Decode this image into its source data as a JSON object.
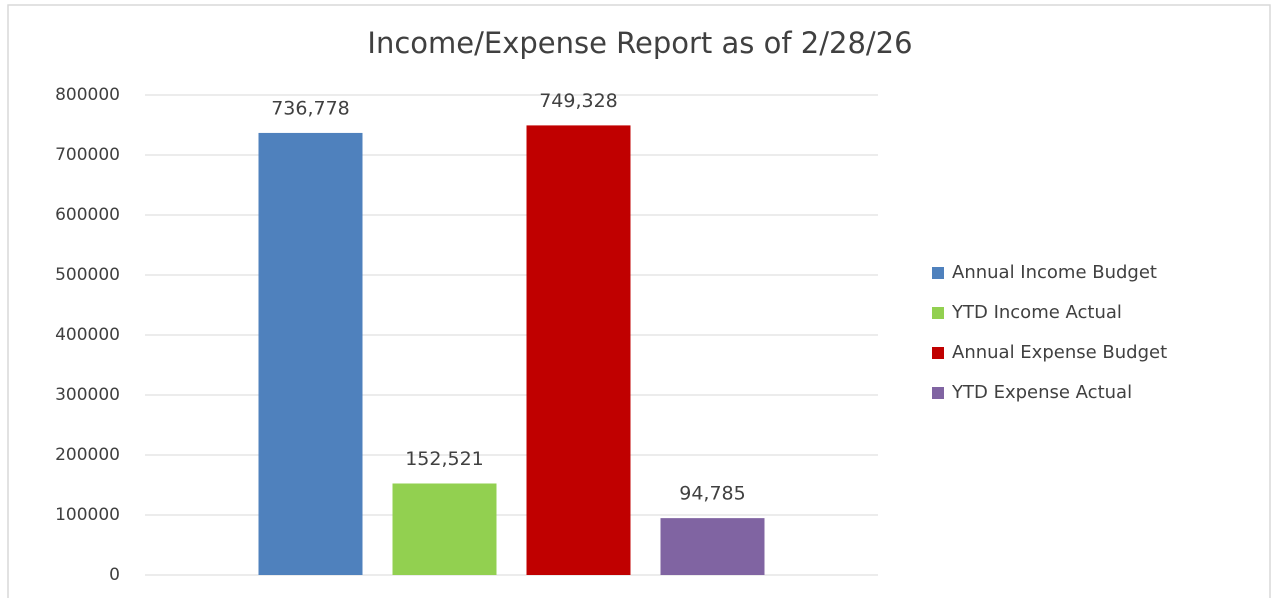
{
  "chart_data": {
    "type": "bar",
    "title": "Income/Expense  Report as of 2/28/26",
    "categories": [
      null
    ],
    "series": [
      {
        "name": "Annual Income Budget",
        "color": "#4f81bd",
        "values": [
          736778
        ],
        "value_labels": [
          "736,778"
        ]
      },
      {
        "name": "YTD Income Actual",
        "color": "#92d050",
        "values": [
          152521
        ],
        "value_labels": [
          "152,521"
        ]
      },
      {
        "name": "Annual Expense Budget",
        "color": "#c00000",
        "values": [
          749328
        ],
        "value_labels": [
          "749,328"
        ]
      },
      {
        "name": "YTD Expense Actual",
        "color": "#8064a2",
        "values": [
          94785
        ],
        "value_labels": [
          "94,785"
        ]
      }
    ],
    "ylim": [
      0,
      800000
    ],
    "yticks": [
      0,
      100000,
      200000,
      300000,
      400000,
      500000,
      600000,
      700000,
      800000
    ],
    "grid": true,
    "legend": "right"
  }
}
